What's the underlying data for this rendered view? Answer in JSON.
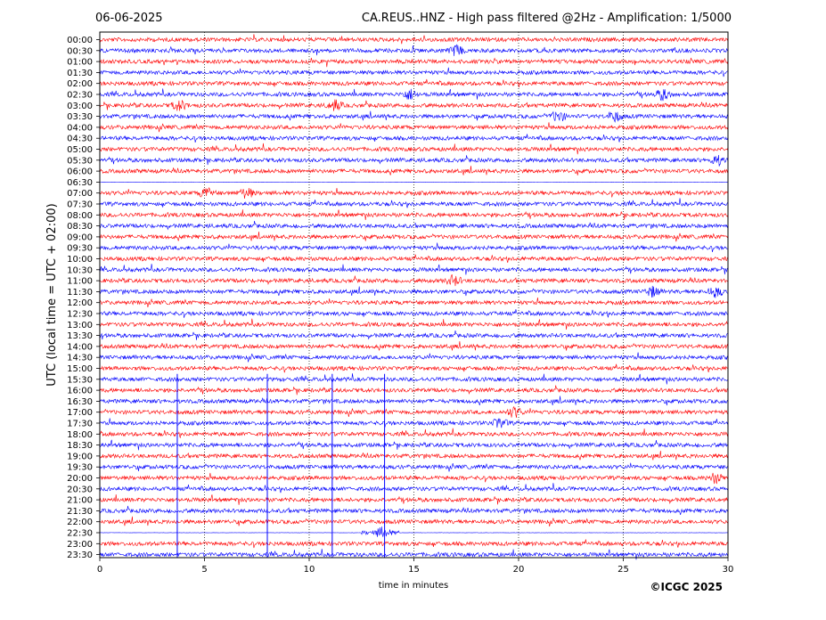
{
  "header": {
    "date": "06-06-2025",
    "title": "CA.REUS..HNZ - High pass filtered @2Hz - Amplification: 1/5000"
  },
  "footer": {
    "copyright": "©ICGC 2025"
  },
  "colors": {
    "trace_even": "#ff0000",
    "trace_odd": "#0000ff",
    "grid": "#000000"
  },
  "chart_data": {
    "type": "line",
    "title": "CA.REUS..HNZ - High pass filtered @2Hz - Amplification: 1/5000",
    "xlabel": "time in minutes",
    "ylabel": "UTC (local time = UTC + 02:00)",
    "xlim": [
      0,
      30
    ],
    "x_ticks": [
      0,
      5,
      10,
      15,
      20,
      25,
      30
    ],
    "grid": "vertical dotted lines at 5,10,15,20,25",
    "rows": [
      "00:00",
      "00:30",
      "01:00",
      "01:30",
      "02:00",
      "02:30",
      "03:00",
      "03:30",
      "04:00",
      "04:30",
      "05:00",
      "05:30",
      "06:00",
      "06:30",
      "07:00",
      "07:30",
      "08:00",
      "08:30",
      "09:00",
      "09:30",
      "10:00",
      "10:30",
      "11:00",
      "11:30",
      "12:00",
      "12:30",
      "13:00",
      "13:30",
      "14:00",
      "14:30",
      "15:00",
      "15:30",
      "16:00",
      "16:30",
      "17:00",
      "17:30",
      "18:00",
      "18:30",
      "19:00",
      "19:30",
      "20:00",
      "20:30",
      "21:00",
      "21:30",
      "22:00",
      "22:30",
      "23:00",
      "23:30"
    ],
    "row_colors": "alternating red (even rows) / blue (odd rows)",
    "events": [
      {
        "row": "00:30",
        "minute": 17.0
      },
      {
        "row": "02:30",
        "minute": 14.8
      },
      {
        "row": "02:30",
        "minute": 26.9
      },
      {
        "row": "03:00",
        "minute": 3.8
      },
      {
        "row": "03:00",
        "minute": 11.2
      },
      {
        "row": "03:30",
        "minute": 21.9
      },
      {
        "row": "03:30",
        "minute": 24.6
      },
      {
        "row": "05:30",
        "minute": 29.5
      },
      {
        "row": "06:30",
        "minute": 3.2
      },
      {
        "row": "07:00",
        "minute": 5.1
      },
      {
        "row": "07:00",
        "minute": 7.0
      },
      {
        "row": "11:00",
        "minute": 16.9
      },
      {
        "row": "11:30",
        "minute": 26.4
      },
      {
        "row": "11:30",
        "minute": 29.4
      },
      {
        "row": "17:00",
        "minute": 19.8
      },
      {
        "row": "17:30",
        "minute": 19.1
      },
      {
        "row": "20:00",
        "minute": 29.4
      },
      {
        "row": "22:30",
        "minute": 13.5
      }
    ],
    "spikes": [
      {
        "from_row": "15:30",
        "to_row": "23:30",
        "minute": 3.7
      },
      {
        "from_row": "15:30",
        "to_row": "23:30",
        "minute": 8.0
      },
      {
        "from_row": "15:30",
        "to_row": "23:30",
        "minute": 11.1
      },
      {
        "from_row": "15:30",
        "to_row": "23:30",
        "minute": 13.6
      }
    ],
    "gaps": [
      {
        "row": "06:30",
        "from_minute": 0,
        "to_minute": 30,
        "note": "flat trace"
      },
      {
        "row": "22:30",
        "from_minute": 0,
        "to_minute": 12.5,
        "note": "flat trace"
      },
      {
        "row": "22:30",
        "from_minute": 14.3,
        "to_minute": 30,
        "note": "flat trace"
      }
    ]
  }
}
